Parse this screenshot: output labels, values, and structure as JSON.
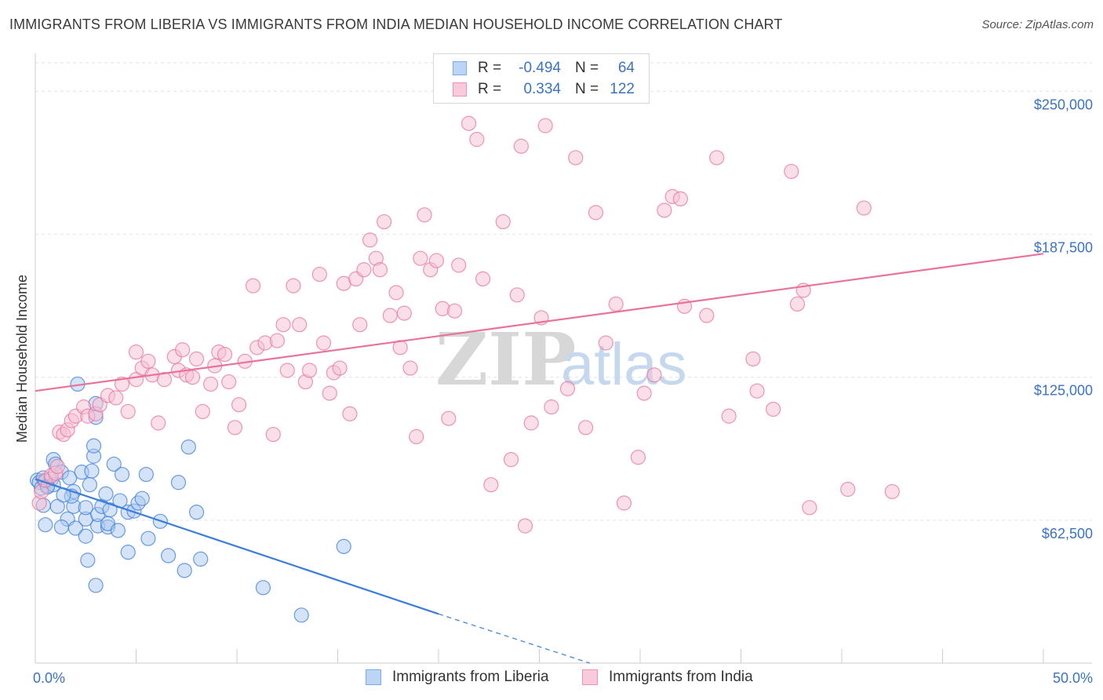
{
  "header": {
    "title": "IMMIGRANTS FROM LIBERIA VS IMMIGRANTS FROM INDIA MEDIAN HOUSEHOLD INCOME CORRELATION CHART",
    "source": "Source: ZipAtlas.com"
  },
  "watermark": {
    "zip": "ZIP",
    "atlas": "atlas"
  },
  "legend": {
    "rows": [
      {
        "r_label": "R =",
        "r_value": "-0.494",
        "n_label": "N =",
        "n_value": "64",
        "color": "#7aaae8",
        "fill": "#bcd5f6"
      },
      {
        "r_label": "R =",
        "r_value": "0.334",
        "n_label": "N =",
        "n_value": "122",
        "color": "#ef93b2",
        "fill": "#f9cadb"
      }
    ]
  },
  "bottom_legend": {
    "liberia": "Immigrants from Liberia",
    "india": "Immigrants from India"
  },
  "chart_data": {
    "type": "scatter",
    "title": "IMMIGRANTS FROM LIBERIA VS IMMIGRANTS FROM INDIA MEDIAN HOUSEHOLD INCOME CORRELATION CHART",
    "xlabel": "",
    "ylabel": "Median Household Income",
    "xlim": [
      0,
      50
    ],
    "ylim": [
      0,
      262500
    ],
    "x_tick_labels": {
      "left": "0.0%",
      "right": "50.0%"
    },
    "y_ticks": [
      {
        "value": 62500,
        "label": "$62,500"
      },
      {
        "value": 125000,
        "label": "$125,000"
      },
      {
        "value": 187500,
        "label": "$187,500"
      },
      {
        "value": 250000,
        "label": "$250,000"
      }
    ],
    "grid": true,
    "series": [
      {
        "name": "Immigrants from Liberia",
        "color": "#3b7dd8",
        "fill": "#a9c8f0",
        "trend": {
          "x0": 0,
          "y0": 80500,
          "x1": 20,
          "y1": 21500,
          "dash_to_x": 27.5,
          "dash_to_y": 0
        },
        "points": [
          [
            0.1,
            80000
          ],
          [
            0.2,
            79000
          ],
          [
            0.3,
            76500
          ],
          [
            0.4,
            81000
          ],
          [
            0.5,
            79500
          ],
          [
            0.6,
            77500
          ],
          [
            0.8,
            80500
          ],
          [
            0.9,
            78000
          ],
          [
            0.4,
            69000
          ],
          [
            0.6,
            77000
          ],
          [
            0.9,
            89000
          ],
          [
            1.0,
            87000
          ],
          [
            1.3,
            83500
          ],
          [
            1.7,
            81000
          ],
          [
            1.9,
            75000
          ],
          [
            2.3,
            83500
          ],
          [
            2.8,
            84000
          ],
          [
            2.9,
            90500
          ],
          [
            2.9,
            95000
          ],
          [
            2.7,
            78000
          ],
          [
            1.9,
            68500
          ],
          [
            1.8,
            73000
          ],
          [
            1.1,
            68500
          ],
          [
            1.6,
            63000
          ],
          [
            1.3,
            59500
          ],
          [
            2.0,
            59000
          ],
          [
            2.5,
            55500
          ],
          [
            2.5,
            63000
          ],
          [
            3.1,
            60000
          ],
          [
            3.1,
            65000
          ],
          [
            3.3,
            68500
          ],
          [
            3.7,
            67000
          ],
          [
            3.5,
            74000
          ],
          [
            3.9,
            87000
          ],
          [
            4.3,
            82500
          ],
          [
            4.2,
            71000
          ],
          [
            4.6,
            66000
          ],
          [
            4.9,
            66500
          ],
          [
            5.1,
            70000
          ],
          [
            5.3,
            72000
          ],
          [
            5.5,
            82500
          ],
          [
            5.6,
            54500
          ],
          [
            6.2,
            62000
          ],
          [
            6.6,
            47000
          ],
          [
            7.1,
            79000
          ],
          [
            7.4,
            40500
          ],
          [
            7.6,
            94500
          ],
          [
            8.0,
            66000
          ],
          [
            8.2,
            45500
          ],
          [
            2.6,
            45000
          ],
          [
            3.0,
            34000
          ],
          [
            4.6,
            48500
          ],
          [
            11.3,
            33000
          ],
          [
            13.2,
            21000
          ],
          [
            15.3,
            51000
          ],
          [
            2.1,
            122000
          ],
          [
            3.0,
            113500
          ],
          [
            3.0,
            107500
          ],
          [
            3.6,
            59500
          ],
          [
            3.6,
            61000
          ],
          [
            4.1,
            58000
          ],
          [
            2.5,
            68000
          ],
          [
            1.4,
            73500
          ],
          [
            0.5,
            60500
          ]
        ]
      },
      {
        "name": "Immigrants from India",
        "color": "#e8739c",
        "fill": "#f7bfd2",
        "trend": {
          "x0": 0,
          "y0": 119000,
          "x1": 50,
          "y1": 179000
        },
        "points": [
          [
            0.2,
            70000
          ],
          [
            0.3,
            75000
          ],
          [
            0.5,
            80000
          ],
          [
            0.8,
            82000
          ],
          [
            1.0,
            83000
          ],
          [
            1.1,
            86000
          ],
          [
            1.2,
            101000
          ],
          [
            1.4,
            100000
          ],
          [
            1.6,
            102000
          ],
          [
            1.8,
            106000
          ],
          [
            2.0,
            108000
          ],
          [
            2.4,
            112000
          ],
          [
            2.6,
            108000
          ],
          [
            3.0,
            109000
          ],
          [
            3.2,
            113000
          ],
          [
            3.6,
            117000
          ],
          [
            4.0,
            116000
          ],
          [
            4.3,
            122000
          ],
          [
            4.6,
            110000
          ],
          [
            5.0,
            136000
          ],
          [
            5.0,
            124000
          ],
          [
            5.3,
            129000
          ],
          [
            5.6,
            132000
          ],
          [
            5.8,
            126000
          ],
          [
            6.1,
            105000
          ],
          [
            6.4,
            124000
          ],
          [
            6.9,
            134000
          ],
          [
            7.1,
            128000
          ],
          [
            7.3,
            137000
          ],
          [
            7.5,
            126000
          ],
          [
            7.8,
            125000
          ],
          [
            8.0,
            133000
          ],
          [
            8.3,
            110000
          ],
          [
            8.7,
            122000
          ],
          [
            8.9,
            130000
          ],
          [
            9.1,
            136000
          ],
          [
            9.4,
            135000
          ],
          [
            9.6,
            123000
          ],
          [
            9.9,
            103000
          ],
          [
            10.1,
            113000
          ],
          [
            10.4,
            132000
          ],
          [
            10.8,
            165000
          ],
          [
            11.0,
            138000
          ],
          [
            11.4,
            140000
          ],
          [
            11.8,
            100000
          ],
          [
            12.0,
            141000
          ],
          [
            12.3,
            148000
          ],
          [
            12.5,
            128000
          ],
          [
            12.8,
            165000
          ],
          [
            13.1,
            148000
          ],
          [
            13.4,
            123000
          ],
          [
            13.6,
            128000
          ],
          [
            14.1,
            170000
          ],
          [
            14.3,
            140000
          ],
          [
            14.6,
            118000
          ],
          [
            14.8,
            127000
          ],
          [
            15.1,
            129000
          ],
          [
            15.3,
            166000
          ],
          [
            15.6,
            109000
          ],
          [
            15.9,
            168000
          ],
          [
            16.1,
            148000
          ],
          [
            16.3,
            172000
          ],
          [
            16.6,
            185000
          ],
          [
            16.9,
            177000
          ],
          [
            17.1,
            172000
          ],
          [
            17.3,
            193000
          ],
          [
            17.6,
            152000
          ],
          [
            17.9,
            162000
          ],
          [
            18.1,
            138000
          ],
          [
            18.3,
            153000
          ],
          [
            18.6,
            129000
          ],
          [
            18.9,
            99000
          ],
          [
            19.1,
            177000
          ],
          [
            19.3,
            196000
          ],
          [
            19.6,
            172000
          ],
          [
            19.9,
            176000
          ],
          [
            20.2,
            155000
          ],
          [
            20.5,
            107000
          ],
          [
            20.8,
            154000
          ],
          [
            21.0,
            174000
          ],
          [
            21.5,
            236000
          ],
          [
            21.9,
            229000
          ],
          [
            22.2,
            168000
          ],
          [
            22.6,
            78000
          ],
          [
            23.2,
            193000
          ],
          [
            23.6,
            89000
          ],
          [
            23.9,
            161000
          ],
          [
            24.1,
            226000
          ],
          [
            24.6,
            105000
          ],
          [
            25.1,
            151000
          ],
          [
            25.3,
            235000
          ],
          [
            25.6,
            112000
          ],
          [
            26.4,
            120000
          ],
          [
            26.8,
            221000
          ],
          [
            27.3,
            103000
          ],
          [
            27.8,
            197000
          ],
          [
            28.3,
            140000
          ],
          [
            28.8,
            157000
          ],
          [
            29.2,
            70000
          ],
          [
            29.9,
            90000
          ],
          [
            30.2,
            118000
          ],
          [
            30.7,
            126000
          ],
          [
            31.2,
            198000
          ],
          [
            31.6,
            204000
          ],
          [
            32.0,
            203000
          ],
          [
            32.2,
            156000
          ],
          [
            33.3,
            152000
          ],
          [
            33.8,
            221000
          ],
          [
            34.4,
            108000
          ],
          [
            35.6,
            133000
          ],
          [
            35.8,
            119000
          ],
          [
            36.6,
            111000
          ],
          [
            37.5,
            215000
          ],
          [
            37.8,
            157000
          ],
          [
            38.1,
            163000
          ],
          [
            38.4,
            68000
          ],
          [
            40.3,
            76000
          ],
          [
            41.1,
            199000
          ],
          [
            42.5,
            75000
          ],
          [
            24.3,
            60000
          ]
        ]
      }
    ]
  }
}
